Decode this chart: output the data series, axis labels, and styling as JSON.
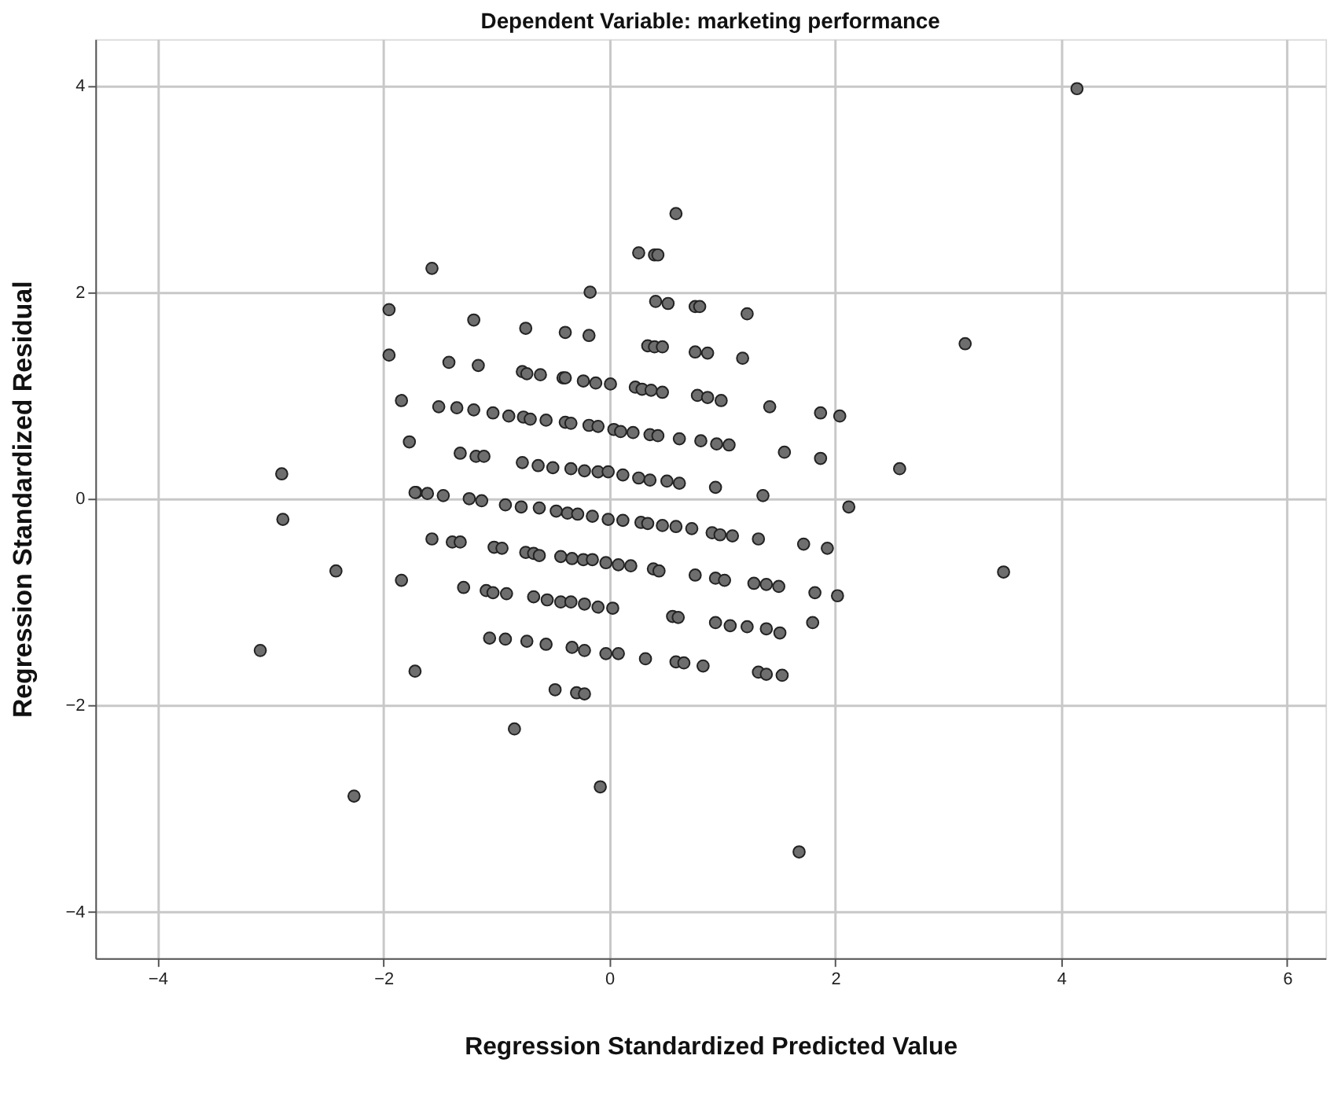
{
  "chart_data": {
    "type": "scatter",
    "title": "Dependent Variable: marketing performance",
    "xlabel": "Regression Standardized Predicted Value",
    "ylabel": "Regression Standardized Residual",
    "xlim": [
      -4.55,
      6.34
    ],
    "ylim": [
      -4.45,
      4.45
    ],
    "xticks": [
      -4,
      -2,
      0,
      2,
      4,
      6
    ],
    "yticks": [
      -4,
      -2,
      0,
      2,
      4
    ],
    "grid": true,
    "marker": "circle",
    "series": [
      {
        "color": "#6e6e6e",
        "x": [
          4.14,
          3.15,
          3.49,
          2.57,
          2.12,
          -3.09,
          -2.9,
          -2.89,
          -2.42,
          -2.26,
          1.68,
          -0.08,
          -0.84,
          -1.57,
          -1.95,
          -1.95,
          -1.84,
          -1.77,
          -1.84,
          -1.71,
          0.59,
          0.26,
          0.4,
          0.43,
          -0.17,
          1.42,
          1.87,
          2.04,
          1.87,
          1.55,
          1.72,
          1.93,
          2.02,
          1.82,
          1.8,
          1.51,
          -1.2,
          -0.74,
          -0.39,
          -0.18,
          0.41,
          0.52,
          0.76,
          0.8,
          1.22,
          -1.42,
          -1.16,
          -0.77,
          -0.73,
          -0.61,
          -0.41,
          -0.39,
          -0.23,
          -0.12,
          0.01,
          0.34,
          0.4,
          0.47,
          0.76,
          0.87,
          1.18,
          0.23,
          0.29,
          0.37,
          0.47,
          0.78,
          0.87,
          0.99,
          -1.51,
          -1.35,
          -1.2,
          -1.03,
          -0.89,
          -0.76,
          -0.7,
          -0.56,
          -0.39,
          -0.34,
          -0.18,
          -0.1,
          0.04,
          0.1,
          0.21,
          0.36,
          0.43,
          0.62,
          0.81,
          0.95,
          1.06,
          -1.32,
          -1.18,
          -1.11,
          -0.77,
          -0.63,
          -0.5,
          -0.34,
          -0.22,
          -0.1,
          -0.01,
          0.12,
          0.26,
          0.36,
          0.51,
          0.62,
          0.94,
          1.36,
          -1.72,
          -1.61,
          -1.47,
          -1.24,
          -1.13,
          -0.92,
          -0.78,
          -0.62,
          -0.47,
          -0.37,
          -0.28,
          -0.15,
          -0.01,
          0.12,
          0.28,
          0.34,
          0.47,
          0.59,
          0.73,
          0.91,
          0.98,
          1.09,
          1.32,
          -1.57,
          -1.39,
          -1.32,
          -1.02,
          -0.95,
          -0.74,
          -0.67,
          -0.62,
          -0.43,
          -0.33,
          -0.23,
          -0.15,
          -0.03,
          0.08,
          0.19,
          0.39,
          0.44,
          0.76,
          0.94,
          1.02,
          1.28,
          1.39,
          1.5,
          -1.29,
          -1.09,
          -1.03,
          -0.91,
          -0.67,
          -0.55,
          -0.43,
          -0.34,
          -0.22,
          -0.1,
          0.03,
          0.56,
          0.61,
          0.94,
          1.07,
          1.22,
          1.39,
          -1.06,
          -0.92,
          -0.73,
          -0.56,
          -0.33,
          -0.22,
          -0.03,
          0.08,
          0.32,
          0.59,
          0.66,
          0.83,
          1.32,
          1.39,
          1.53,
          -1.72,
          -0.48,
          -0.29,
          -0.22
        ],
        "values": [
          3.97,
          1.5,
          -0.71,
          0.29,
          -0.08,
          -1.47,
          0.24,
          -0.2,
          -0.7,
          -2.88,
          -3.42,
          -2.79,
          -2.23,
          2.23,
          1.83,
          1.39,
          0.95,
          0.55,
          -0.79,
          0.06,
          2.76,
          2.38,
          2.36,
          2.36,
          2.0,
          0.89,
          0.83,
          0.8,
          0.39,
          0.45,
          -0.44,
          -0.48,
          -0.94,
          -0.91,
          -1.2,
          -1.3,
          1.73,
          1.65,
          1.61,
          1.58,
          1.91,
          1.89,
          1.86,
          1.86,
          1.79,
          1.32,
          1.29,
          1.23,
          1.21,
          1.2,
          1.17,
          1.17,
          1.14,
          1.12,
          1.11,
          1.48,
          1.47,
          1.47,
          1.42,
          1.41,
          1.36,
          1.08,
          1.06,
          1.05,
          1.03,
          1.0,
          0.98,
          0.95,
          0.89,
          0.88,
          0.86,
          0.83,
          0.8,
          0.79,
          0.77,
          0.76,
          0.74,
          0.73,
          0.71,
          0.7,
          0.67,
          0.65,
          0.64,
          0.62,
          0.61,
          0.58,
          0.56,
          0.53,
          0.52,
          0.44,
          0.41,
          0.41,
          0.35,
          0.32,
          0.3,
          0.29,
          0.27,
          0.26,
          0.26,
          0.23,
          0.2,
          0.18,
          0.17,
          0.15,
          0.11,
          0.03,
          0.06,
          0.05,
          0.03,
          0.0,
          -0.02,
          -0.06,
          -0.08,
          -0.09,
          -0.12,
          -0.14,
          -0.15,
          -0.17,
          -0.2,
          -0.21,
          -0.23,
          -0.24,
          -0.26,
          -0.27,
          -0.29,
          -0.33,
          -0.35,
          -0.36,
          -0.39,
          -0.39,
          -0.42,
          -0.42,
          -0.47,
          -0.48,
          -0.52,
          -0.53,
          -0.55,
          -0.56,
          -0.58,
          -0.59,
          -0.59,
          -0.62,
          -0.64,
          -0.65,
          -0.68,
          -0.7,
          -0.74,
          -0.77,
          -0.79,
          -0.82,
          -0.83,
          -0.85,
          -0.86,
          -0.89,
          -0.91,
          -0.92,
          -0.95,
          -0.98,
          -1.0,
          -1.0,
          -1.02,
          -1.05,
          -1.06,
          -1.14,
          -1.15,
          -1.2,
          -1.23,
          -1.24,
          -1.26,
          -1.35,
          -1.36,
          -1.38,
          -1.41,
          -1.44,
          -1.47,
          -1.5,
          -1.5,
          -1.55,
          -1.58,
          -1.59,
          -1.62,
          -1.68,
          -1.7,
          -1.71,
          -1.67,
          -1.85,
          -1.88,
          -1.89
        ]
      }
    ]
  }
}
